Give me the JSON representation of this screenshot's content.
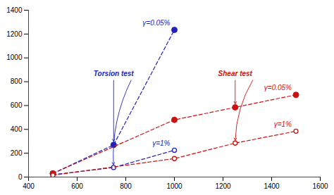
{
  "chart_data": {
    "type": "line",
    "xlim": [
      400,
      1600
    ],
    "ylim": [
      0,
      1400
    ],
    "xticks": [
      400,
      600,
      800,
      1000,
      1200,
      1400,
      1600
    ],
    "yticks": [
      0,
      200,
      400,
      600,
      800,
      1000,
      1200,
      1400
    ],
    "grid": false,
    "series": [
      {
        "name": "γ=0.05%",
        "color": "#2222bb",
        "marker": "filled",
        "line_style": "dashed",
        "x": [
          500,
          750,
          1000
        ],
        "values": [
          30,
          270,
          1235
        ]
      },
      {
        "name": "γ=1%",
        "color": "#2222bb",
        "marker": "open",
        "line_style": "dashed",
        "x": [
          500,
          750,
          1000
        ],
        "values": [
          20,
          80,
          225
        ]
      },
      {
        "name": "γ=0.05%",
        "color": "#cc1111",
        "marker": "filled",
        "line_style": "dashed",
        "x": [
          500,
          1000,
          1250,
          1500
        ],
        "values": [
          30,
          480,
          585,
          690
        ]
      },
      {
        "name": "γ=1%",
        "color": "#cc1111",
        "marker": "open",
        "line_style": "dashed",
        "x": [
          500,
          1000,
          1250,
          1500
        ],
        "values": [
          15,
          155,
          285,
          385
        ]
      }
    ],
    "annotations": [
      {
        "text": "Torsion test",
        "color": "#2222bb"
      },
      {
        "text": "Shear test",
        "color": "#cc1111"
      }
    ]
  }
}
